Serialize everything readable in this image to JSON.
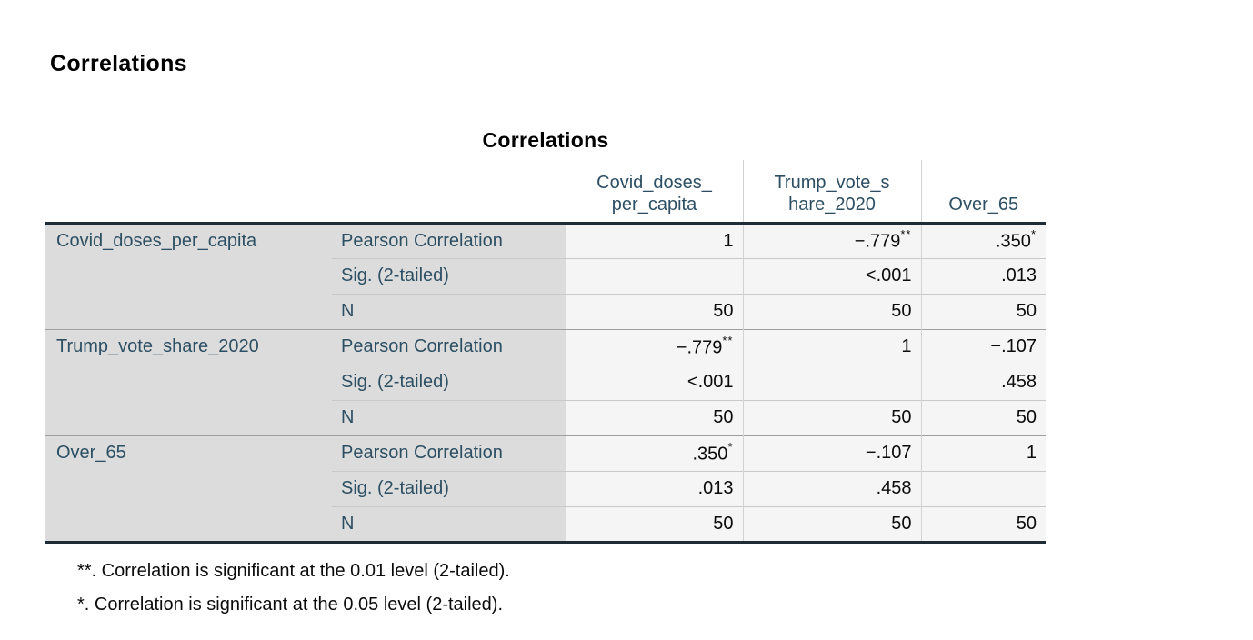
{
  "page_heading": "Correlations",
  "colors": {
    "label_text": "#2d4f63",
    "stub_background": "#dcdcdc",
    "cell_background": "#f5f5f6",
    "heavy_border": "#1e2c38",
    "block_separator": "#9e9e9e",
    "row_separator": "#c9c9c9",
    "column_separator": "#d2d2d2"
  },
  "table": {
    "title": "Correlations",
    "column_headers": [
      {
        "lines": [
          "Covid_doses_",
          "per_capita"
        ]
      },
      {
        "lines": [
          "Trump_vote_s",
          "hare_2020"
        ]
      },
      {
        "lines": [
          "Over_65"
        ]
      }
    ],
    "blocks": [
      {
        "variable": "Covid_doses_per_capita",
        "rows": [
          {
            "label": "Pearson Correlation",
            "cells": [
              {
                "text": "1",
                "sup": ""
              },
              {
                "text": "−.779",
                "sup": "**"
              },
              {
                "text": ".350",
                "sup": "*"
              }
            ]
          },
          {
            "label": "Sig. (2-tailed)",
            "cells": [
              {
                "text": "",
                "sup": ""
              },
              {
                "text": "<.001",
                "sup": ""
              },
              {
                "text": ".013",
                "sup": ""
              }
            ]
          },
          {
            "label": "N",
            "cells": [
              {
                "text": "50",
                "sup": ""
              },
              {
                "text": "50",
                "sup": ""
              },
              {
                "text": "50",
                "sup": ""
              }
            ]
          }
        ]
      },
      {
        "variable": "Trump_vote_share_2020",
        "rows": [
          {
            "label": "Pearson Correlation",
            "cells": [
              {
                "text": "−.779",
                "sup": "**"
              },
              {
                "text": "1",
                "sup": ""
              },
              {
                "text": "−.107",
                "sup": ""
              }
            ]
          },
          {
            "label": "Sig. (2-tailed)",
            "cells": [
              {
                "text": "<.001",
                "sup": ""
              },
              {
                "text": "",
                "sup": ""
              },
              {
                "text": ".458",
                "sup": ""
              }
            ]
          },
          {
            "label": "N",
            "cells": [
              {
                "text": "50",
                "sup": ""
              },
              {
                "text": "50",
                "sup": ""
              },
              {
                "text": "50",
                "sup": ""
              }
            ]
          }
        ]
      },
      {
        "variable": "Over_65",
        "rows": [
          {
            "label": "Pearson Correlation",
            "cells": [
              {
                "text": ".350",
                "sup": "*"
              },
              {
                "text": "−.107",
                "sup": ""
              },
              {
                "text": "1",
                "sup": ""
              }
            ]
          },
          {
            "label": "Sig. (2-tailed)",
            "cells": [
              {
                "text": ".013",
                "sup": ""
              },
              {
                "text": ".458",
                "sup": ""
              },
              {
                "text": "",
                "sup": ""
              }
            ]
          },
          {
            "label": "N",
            "cells": [
              {
                "text": "50",
                "sup": ""
              },
              {
                "text": "50",
                "sup": ""
              },
              {
                "text": "50",
                "sup": ""
              }
            ]
          }
        ]
      }
    ],
    "footnotes": [
      "**. Correlation is significant at the 0.01 level (2-tailed).",
      "*. Correlation is significant at the 0.05 level (2-tailed)."
    ]
  }
}
